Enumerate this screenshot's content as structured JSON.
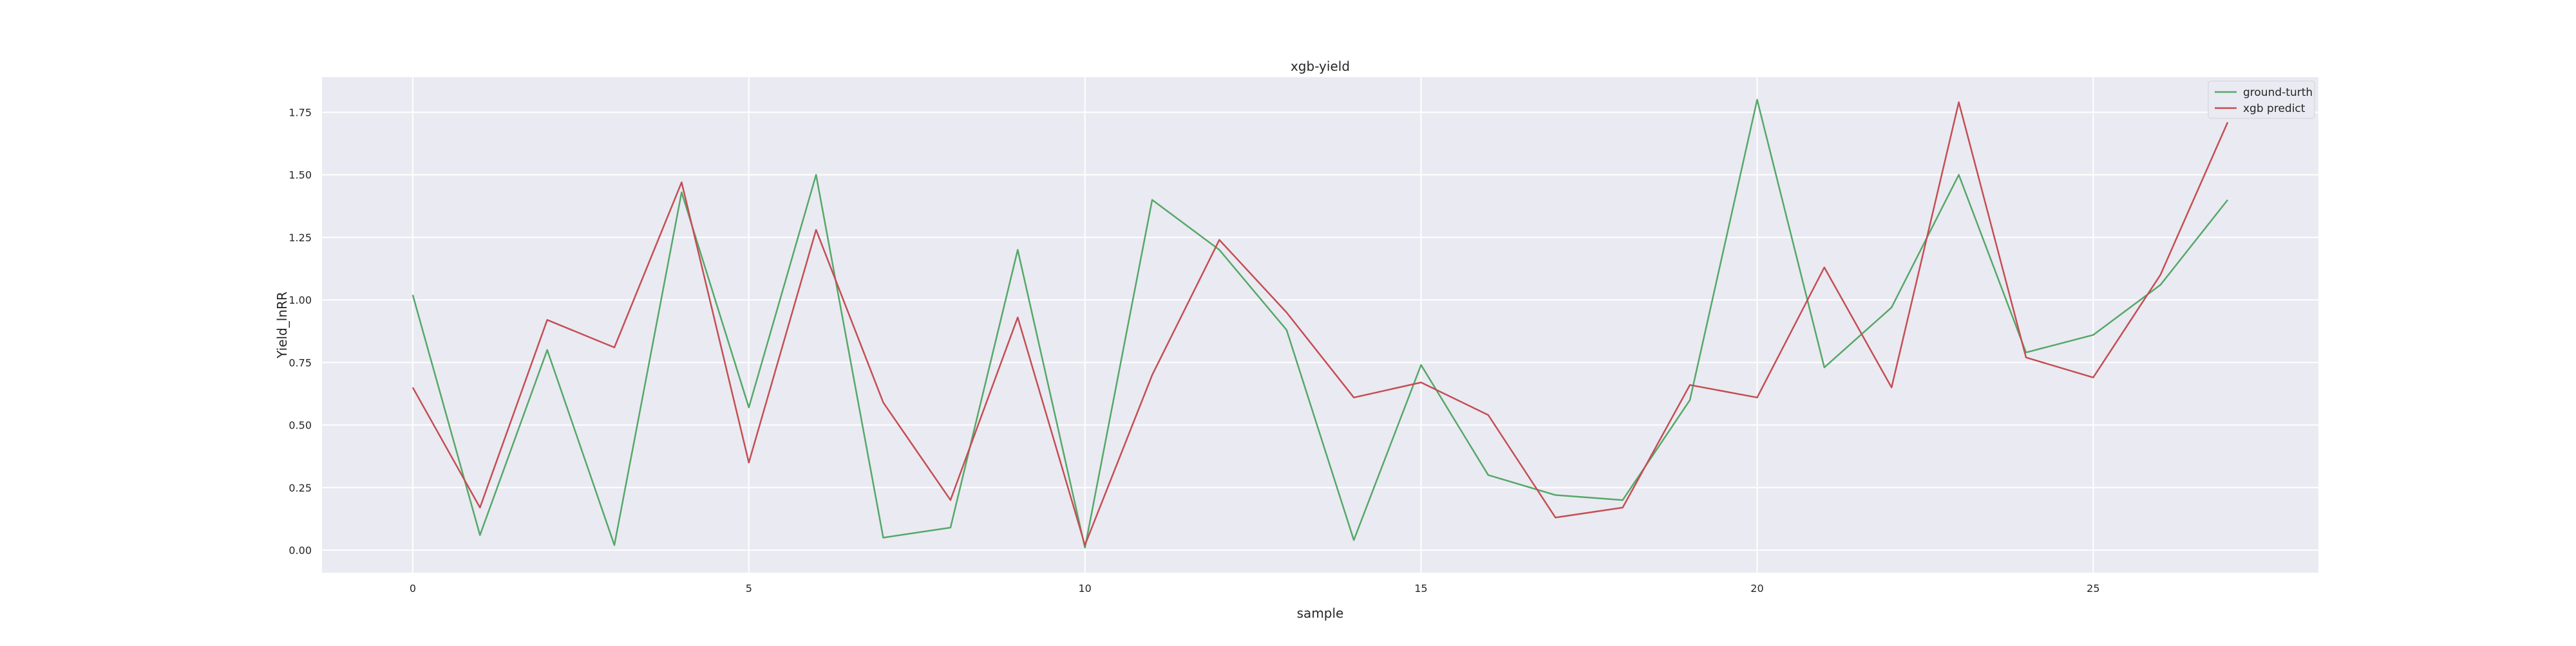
{
  "chart_data": {
    "type": "line",
    "title": "xgb-yield",
    "xlabel": "sample",
    "ylabel": "Yield_lnRR",
    "xlim": [
      -1.35,
      28.35
    ],
    "ylim": [
      -0.09,
      1.89
    ],
    "x_ticks": [
      0,
      5,
      10,
      15,
      20,
      25
    ],
    "y_ticks": [
      0.0,
      0.25,
      0.5,
      0.75,
      1.0,
      1.25,
      1.5,
      1.75
    ],
    "y_tick_labels": [
      "0.00",
      "0.25",
      "0.50",
      "0.75",
      "1.00",
      "1.25",
      "1.50",
      "1.75"
    ],
    "grid": true,
    "legend_position": "top-right",
    "x": [
      0,
      1,
      2,
      3,
      4,
      5,
      6,
      7,
      8,
      9,
      10,
      11,
      12,
      13,
      14,
      15,
      16,
      17,
      18,
      19,
      20,
      21,
      22,
      23,
      24,
      25,
      26,
      27
    ],
    "series": [
      {
        "name": "ground-turth",
        "color": "#55a868",
        "values": [
          1.02,
          0.06,
          0.8,
          0.02,
          1.43,
          0.57,
          1.5,
          0.05,
          0.09,
          1.2,
          0.01,
          1.4,
          1.2,
          0.88,
          0.04,
          0.74,
          0.3,
          0.22,
          0.2,
          0.6,
          1.8,
          0.73,
          0.97,
          1.5,
          0.79,
          0.86,
          1.06,
          1.4
        ]
      },
      {
        "name": "xgb predict",
        "color": "#c44e52",
        "values": [
          0.65,
          0.17,
          0.92,
          0.81,
          1.47,
          0.35,
          1.28,
          0.59,
          0.2,
          0.93,
          0.02,
          0.7,
          1.24,
          0.95,
          0.61,
          0.67,
          0.54,
          0.13,
          0.17,
          0.66,
          0.61,
          1.13,
          0.65,
          1.79,
          0.77,
          0.69,
          1.1,
          1.71
        ]
      }
    ]
  },
  "colors": {
    "plot_background": "#eaeaf2",
    "grid": "#ffffff",
    "text": "#262626"
  }
}
